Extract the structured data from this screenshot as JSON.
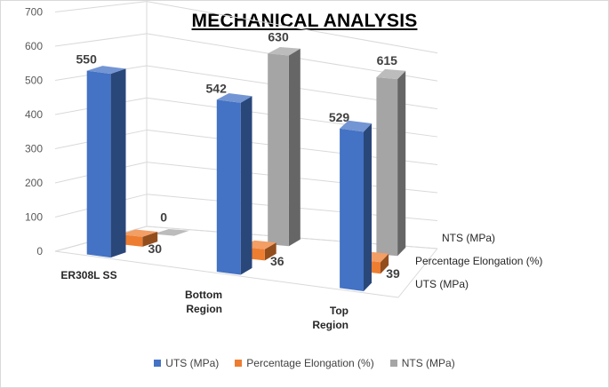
{
  "chart_data": {
    "type": "bar",
    "variant": "3d-column",
    "title": "MECHANICAL ANALYSIS",
    "categories": [
      "ER308L SS",
      "Bottom Region",
      "Top Region"
    ],
    "category_lines": [
      [
        "ER308L SS"
      ],
      [
        "Bottom",
        "Region"
      ],
      [
        "Top",
        "Region"
      ]
    ],
    "series": [
      {
        "name": "UTS (MPa)",
        "values": [
          550,
          542,
          529
        ],
        "color": "#4472C4"
      },
      {
        "name": "Percentage Elongation (%)",
        "values": [
          30,
          36,
          39
        ],
        "color": "#ED7D31"
      },
      {
        "name": "NTS (MPa)",
        "values": [
          0,
          630,
          615
        ],
        "color": "#A5A5A5"
      }
    ],
    "y_ticks": [
      "0",
      "100",
      "200",
      "300",
      "400",
      "500",
      "600",
      "700"
    ],
    "ylim": [
      0,
      700
    ],
    "grid": true,
    "legend_position": "bottom"
  }
}
